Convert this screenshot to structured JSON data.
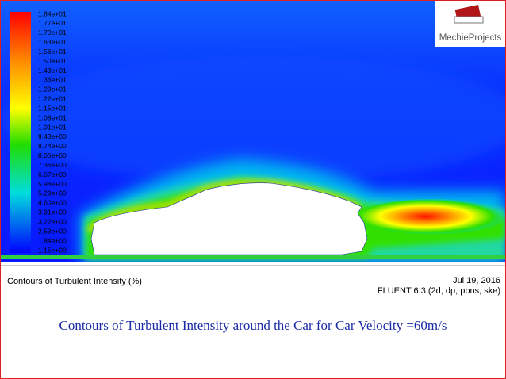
{
  "colorbar": {
    "labels": [
      "1.84e+01",
      "1.77e+01",
      "1.70e+01",
      "1.63e+01",
      "1.56e+01",
      "1.50e+01",
      "1.43e+01",
      "1.36e+01",
      "1.29e+01",
      "1.22e+01",
      "1.15e+01",
      "1.08e+01",
      "1.01e+01",
      "9.43e+00",
      "8.74e+00",
      "8.05e+00",
      "7.36e+00",
      "6.67e+00",
      "5.98e+00",
      "5.29e+00",
      "4.60e+00",
      "3.91e+00",
      "3.22e+00",
      "2.53e+00",
      "1.84e+00",
      "1.15e+00"
    ]
  },
  "logo": {
    "text": "MechieProjects"
  },
  "footer": {
    "title": "Contours of Turbulent Intensity (%)",
    "date": "Jul 19, 2016",
    "solver": "FLUENT 6.3 (2d, dp, pbns, ske)"
  },
  "caption": "Contours of Turbulent Intensity around the Car for Car Velocity =60m/s"
}
